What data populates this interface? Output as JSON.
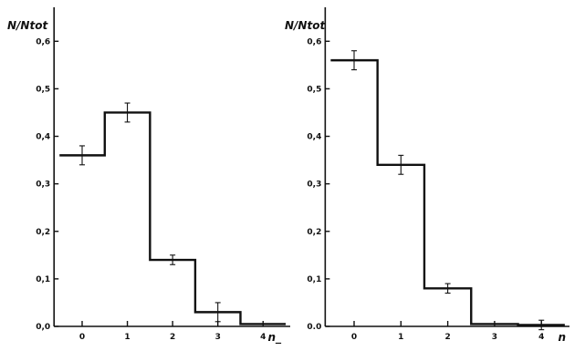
{
  "chart_data": [
    {
      "type": "histogram",
      "ylabel": "N/N_tot",
      "ylabel_display": "N/Ntot",
      "xlabel": "n_",
      "xlabel_display": "n_",
      "x_tick_labels": [
        "0",
        "1",
        "2",
        "3",
        "4"
      ],
      "y_tick_labels": [
        "0,0",
        "0,1",
        "0,2",
        "0,3",
        "0,4",
        "0,5",
        "0,6"
      ],
      "ylim": [
        0,
        0.66
      ],
      "xlim": [
        -0.5,
        4.8
      ],
      "grid": false,
      "bins": [
        0,
        1,
        2,
        3,
        4
      ],
      "values": [
        0.36,
        0.45,
        0.14,
        0.03,
        0.005
      ],
      "errors": [
        0.02,
        0.02,
        0.01,
        0.02,
        0.0
      ]
    },
    {
      "type": "histogram",
      "ylabel": "N/N_tot",
      "ylabel_display": "N/Ntot",
      "xlabel": "n",
      "xlabel_display": "n",
      "x_tick_labels": [
        "0",
        "1",
        "2",
        "3",
        "4"
      ],
      "y_tick_labels": [
        "0.0",
        "0,1",
        "0,2",
        "0,3",
        "0,4",
        "0,5",
        "0,6"
      ],
      "ylim": [
        0,
        0.66
      ],
      "xlim": [
        -0.5,
        4.8
      ],
      "grid": false,
      "bins": [
        0,
        1,
        2,
        3,
        4
      ],
      "values": [
        0.56,
        0.34,
        0.08,
        0.005,
        0.003
      ],
      "errors": [
        0.02,
        0.02,
        0.01,
        0.0,
        0.01
      ]
    }
  ]
}
